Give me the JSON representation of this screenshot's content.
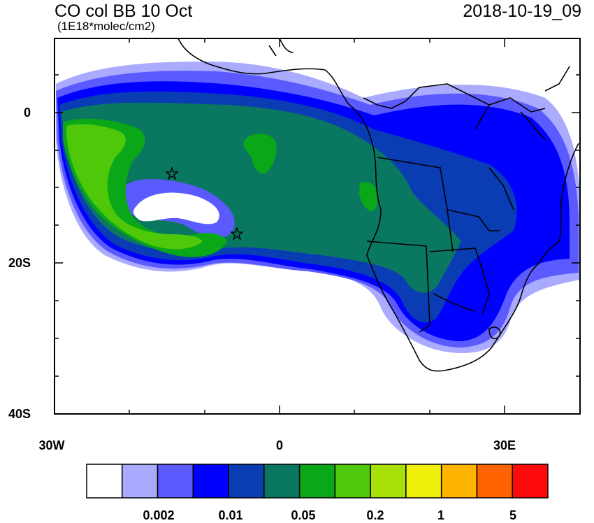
{
  "header": {
    "title": "CO col BB 10 Oct",
    "units": "(1E18*molec/cm2)",
    "datetime": "2018-10-19_09"
  },
  "axes": {
    "lat_labels": [
      "0",
      "20S",
      "40S"
    ],
    "lon_labels": [
      "30W",
      "0",
      "30E"
    ]
  },
  "colorbar": {
    "colors": [
      "#ffffff",
      "#aaaaff",
      "#5a5aff",
      "#0000ff",
      "#0a3cb4",
      "#0a7860",
      "#0aa818",
      "#50c80a",
      "#a8e00a",
      "#f0f00a",
      "#ffb400",
      "#ff6400",
      "#ff0a0a"
    ],
    "labels": [
      "0.002",
      "0.01",
      "0.05",
      "0.2",
      "1",
      "5"
    ]
  },
  "markers": {
    "symbol": "star",
    "count": 2
  }
}
